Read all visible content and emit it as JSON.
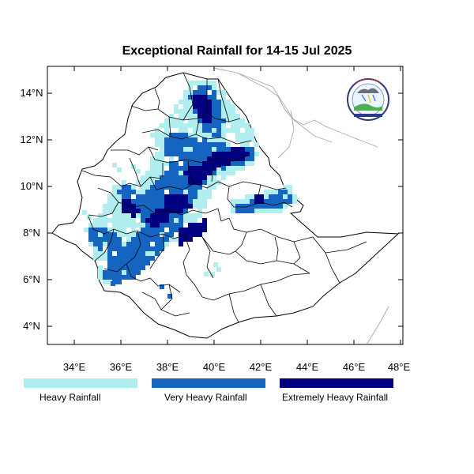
{
  "title": "Exceptional Rainfall for 14-15 Jul 2025",
  "axes": {
    "x_ticks": [
      "34°E",
      "36°E",
      "38°E",
      "40°E",
      "42°E",
      "44°E",
      "46°E",
      "48°E"
    ],
    "y_ticks": [
      "4°N",
      "6°N",
      "8°N",
      "10°N",
      "12°N",
      "14°N"
    ],
    "x_values": [
      34,
      36,
      38,
      40,
      42,
      44,
      46,
      48
    ],
    "y_values": [
      4,
      6,
      8,
      10,
      12,
      14
    ],
    "lon_range": [
      32.9,
      48.1
    ],
    "lat_range": [
      3.2,
      15.0
    ]
  },
  "legend": [
    {
      "label": "Heavy Rainfall",
      "color": "#b0eef0"
    },
    {
      "label": "Very Heavy Rainfall",
      "color": "#1565c0"
    },
    {
      "label": "Extremely Heavy Rainfall",
      "color": "#000080"
    }
  ],
  "logo": {
    "text": "Ethiopian Meteorology Institute",
    "caption": "EMI"
  },
  "colors": {
    "heavy": "#b0eef0",
    "very_heavy": "#1565c0",
    "extreme": "#000080",
    "border": "#000000",
    "neighbor_border": "#a0a0a0"
  }
}
